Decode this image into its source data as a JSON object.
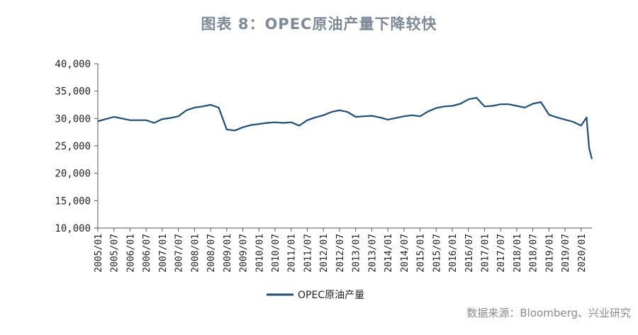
{
  "chart_data": {
    "type": "line",
    "title": "图表 8：OPEC原油产量下降较快",
    "source": "数据来源：Bloomberg、兴业研究",
    "xlabel": "",
    "ylabel": "",
    "ylim": [
      10000,
      40000
    ],
    "yticks": [
      10000,
      15000,
      20000,
      25000,
      30000,
      35000,
      40000
    ],
    "ytick_labels": [
      "10,000",
      "15,000",
      "20,000",
      "25,000",
      "30,000",
      "35,000",
      "40,000"
    ],
    "xtick_labels": [
      "2005/01",
      "2005/07",
      "2006/01",
      "2006/07",
      "2007/01",
      "2007/07",
      "2008/01",
      "2008/07",
      "2009/01",
      "2009/07",
      "2010/01",
      "2010/07",
      "2011/01",
      "2011/07",
      "2012/01",
      "2012/07",
      "2013/01",
      "2013/07",
      "2014/01",
      "2014/07",
      "2015/01",
      "2015/07",
      "2016/01",
      "2016/07",
      "2017/01",
      "2017/07",
      "2018/01",
      "2018/07",
      "2019/01",
      "2019/07",
      "2020/01"
    ],
    "grid": false,
    "legend": "bottom",
    "line_color": "#1f4e79",
    "series": [
      {
        "name": "OPEC原油产量",
        "x": [
          "2005/01",
          "2005/04",
          "2005/07",
          "2005/10",
          "2006/01",
          "2006/04",
          "2006/07",
          "2006/10",
          "2007/01",
          "2007/04",
          "2007/07",
          "2007/10",
          "2008/01",
          "2008/04",
          "2008/07",
          "2008/10",
          "2009/01",
          "2009/04",
          "2009/07",
          "2009/10",
          "2010/01",
          "2010/04",
          "2010/07",
          "2010/10",
          "2011/01",
          "2011/04",
          "2011/07",
          "2011/10",
          "2012/01",
          "2012/04",
          "2012/07",
          "2012/10",
          "2013/01",
          "2013/04",
          "2013/07",
          "2013/10",
          "2014/01",
          "2014/04",
          "2014/07",
          "2014/10",
          "2015/01",
          "2015/04",
          "2015/07",
          "2015/10",
          "2016/01",
          "2016/04",
          "2016/07",
          "2016/10",
          "2017/01",
          "2017/04",
          "2017/07",
          "2017/10",
          "2018/01",
          "2018/04",
          "2018/07",
          "2018/10",
          "2019/01",
          "2019/04",
          "2019/07",
          "2019/10",
          "2020/01",
          "2020/03",
          "2020/04",
          "2020/05"
        ],
        "values": [
          29500,
          29900,
          30300,
          30000,
          29700,
          29700,
          29700,
          29200,
          29900,
          30100,
          30400,
          31500,
          32000,
          32200,
          32500,
          32000,
          28000,
          27800,
          28400,
          28800,
          29000,
          29200,
          29300,
          29200,
          29300,
          28700,
          29700,
          30200,
          30600,
          31200,
          31500,
          31200,
          30300,
          30400,
          30500,
          30200,
          29800,
          30100,
          30400,
          30600,
          30400,
          31300,
          31900,
          32200,
          32300,
          32700,
          33500,
          33800,
          32200,
          32300,
          32600,
          32600,
          32300,
          32000,
          32700,
          33000,
          30700,
          30200,
          29800,
          29400,
          28700,
          30200,
          24500,
          22600
        ]
      }
    ]
  }
}
